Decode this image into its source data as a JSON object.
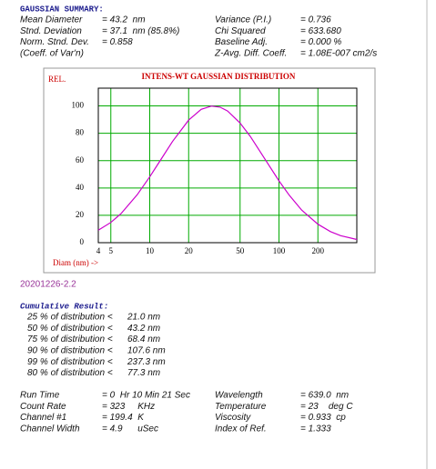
{
  "summary": {
    "title": "GAUSSIAN SUMMARY:",
    "left": [
      {
        "label": "Mean Diameter",
        "value": "= 43.2  nm"
      },
      {
        "label": "Stnd. Deviation",
        "value": "= 37.1  nm (85.8%)"
      },
      {
        "label": "Norm. Stnd. Dev.",
        "value": "= 0.858"
      },
      {
        "label": "(Coeff. of Var'n)"
      }
    ],
    "right": [
      {
        "label": "Variance (P.I.)",
        "value": "= 0.736"
      },
      {
        "label": "Chi Squared",
        "value": "= 633.680"
      },
      {
        "label": "Baseline Adj.",
        "value": "= 0.000 %"
      },
      {
        "label": "Z-Avg. Diff. Coeff.",
        "value": "= 1.08E-007 cm2/s"
      }
    ]
  },
  "chart_data": {
    "type": "line",
    "title": "INTENS-WT GAUSSIAN DISTRIBUTION",
    "ylabel": "REL.",
    "xlabel": "Diam (nm) ->",
    "x": [
      4,
      5,
      6,
      8,
      10,
      12,
      15,
      20,
      25,
      30,
      35,
      40,
      50,
      60,
      80,
      100,
      120,
      150,
      200,
      250,
      300,
      400
    ],
    "values": [
      9.1,
      14.8,
      21.3,
      35.0,
      48.1,
      59.8,
      74.0,
      89.7,
      97.5,
      99.9,
      99.1,
      96.3,
      87.5,
      77.7,
      59.4,
      45.2,
      34.7,
      23.8,
      13.5,
      8.1,
      5.1,
      2.3
    ],
    "color": "#cc00cc",
    "xscale": "log",
    "xlim": [
      4,
      400
    ],
    "xticks": [
      4,
      5,
      10,
      20,
      50,
      100,
      200
    ],
    "ylim": [
      0,
      113
    ],
    "yticks": [
      0,
      20,
      40,
      60,
      80,
      100
    ],
    "grid": true,
    "grid_color": "#00aa00"
  },
  "sample_id": "20201226-2.2",
  "cumulative": {
    "title": "Cumulative Result:",
    "rows": [
      {
        "label": "25 % of distribution <",
        "value": "21.0 nm"
      },
      {
        "label": "50 % of distribution <",
        "value": "43.2 nm"
      },
      {
        "label": "75 % of distribution <",
        "value": "68.4 nm"
      },
      {
        "label": "90 % of distribution <",
        "value": "107.6 nm"
      },
      {
        "label": "99 % of distribution <",
        "value": "237.3 nm"
      },
      {
        "label": "80 % of distribution <",
        "value": "77.3 nm"
      }
    ]
  },
  "conditions": {
    "left": [
      {
        "label": "Run Time",
        "value": "= 0  Hr 10 Min 21 Sec"
      },
      {
        "label": "Count Rate",
        "value": "= 323     KHz"
      },
      {
        "label": "Channel #1",
        "value": "= 199.4  K"
      },
      {
        "label": "Channel Width",
        "value": "= 4.9      uSec"
      }
    ],
    "right": [
      {
        "label": "Wavelength",
        "value": "= 639.0  nm"
      },
      {
        "label": "Temperature",
        "value": "= 23    deg C"
      },
      {
        "label": "Viscosity",
        "value": "= 0.933  cp"
      },
      {
        "label": "Index of Ref.",
        "value": "= 1.333"
      }
    ]
  }
}
